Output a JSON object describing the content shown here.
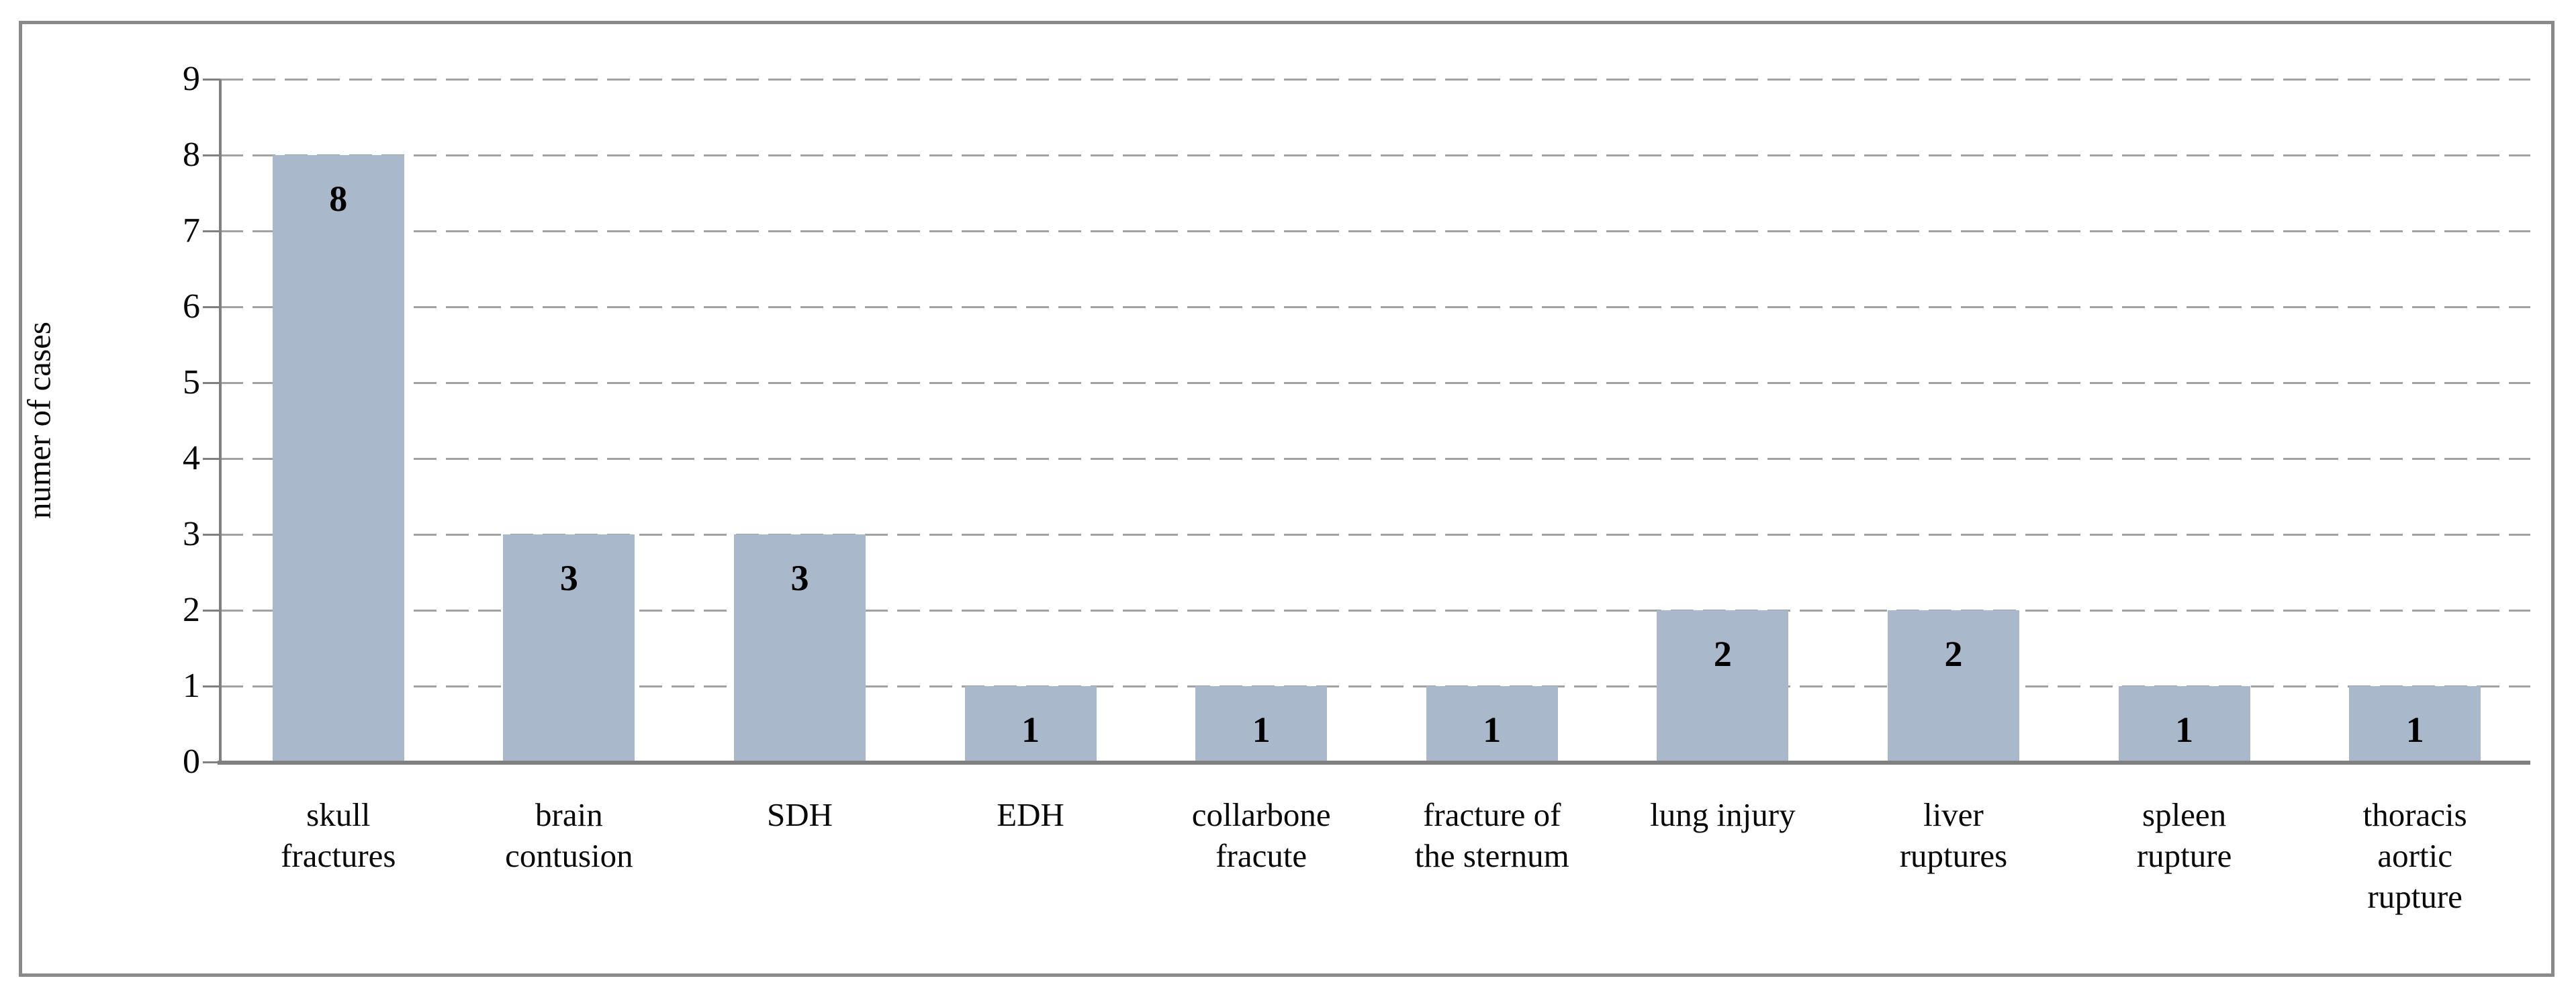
{
  "figure": {
    "border_color": "#8a8a8a",
    "background_color": "#ffffff"
  },
  "chart_data": {
    "type": "bar",
    "title": "",
    "xlabel": "",
    "ylabel": "numer of cases",
    "categories": [
      "skull fractures",
      "brain contusion",
      "SDH",
      "EDH",
      "collarbone fracute",
      "fracture of the sternum",
      "lung injury",
      "liver ruptures",
      "spleen rupture",
      "thoracis aortic rupture"
    ],
    "category_display_lines": [
      [
        "skull",
        "fractures"
      ],
      [
        "brain",
        "contusion"
      ],
      [
        "SDH"
      ],
      [
        "EDH"
      ],
      [
        "collarbone",
        "fracute"
      ],
      [
        "fracture of",
        "the sternum"
      ],
      [
        "lung injury"
      ],
      [
        "liver",
        "ruptures"
      ],
      [
        "spleen",
        "rupture"
      ],
      [
        "thoracis",
        "aortic",
        "rupture"
      ]
    ],
    "values": [
      8,
      3,
      3,
      1,
      1,
      1,
      2,
      2,
      1,
      1
    ],
    "ylim": [
      0,
      9
    ],
    "yticks": [
      0,
      1,
      2,
      3,
      4,
      5,
      6,
      7,
      8,
      9
    ],
    "grid": "horizontal-dashed",
    "legend_position": "none",
    "data_labels": "inside-end",
    "bar_color": "#a9b8cb",
    "gridline_color": "#a2a2a2",
    "axis_color": "#808080",
    "text_color": "#0a0a0a",
    "value_label_color": "#000000"
  }
}
